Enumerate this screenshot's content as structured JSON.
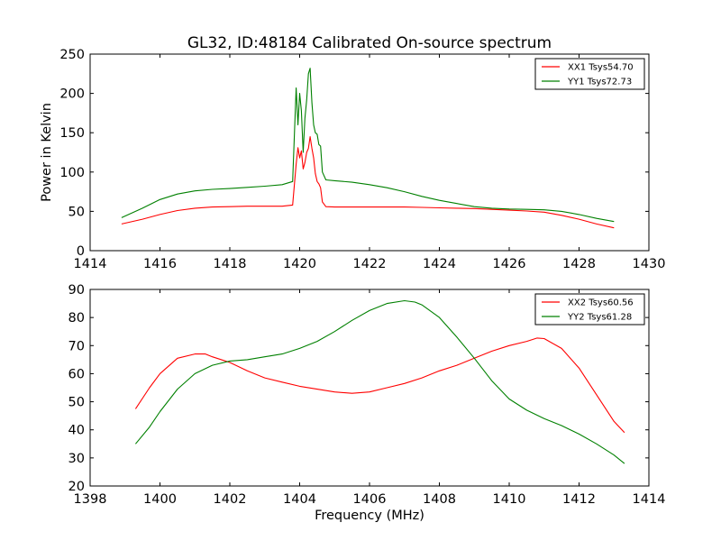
{
  "title": "GL32, ID:48184 Calibrated On-source spectrum",
  "colors": {
    "xx": "#ff0000",
    "yy": "#008000"
  },
  "chart_data": [
    {
      "type": "line",
      "title": "GL32, ID:48184 Calibrated On-source spectrum",
      "xlabel": "",
      "ylabel": "Power in Kelvin",
      "xlim": [
        1414,
        1430
      ],
      "ylim": [
        0,
        250
      ],
      "xticks": [
        1414,
        1416,
        1418,
        1420,
        1422,
        1424,
        1426,
        1428,
        1430
      ],
      "yticks": [
        0,
        50,
        100,
        150,
        200,
        250
      ],
      "grid": false,
      "legend": "top-right",
      "series": [
        {
          "name": "XX1 Tsys54.70",
          "color": "#ff0000",
          "x": [
            1414.9,
            1415.5,
            1416.0,
            1416.5,
            1417.0,
            1417.5,
            1418.0,
            1418.5,
            1419.0,
            1419.5,
            1419.8,
            1419.9,
            1419.95,
            1420.0,
            1420.05,
            1420.1,
            1420.15,
            1420.2,
            1420.25,
            1420.3,
            1420.35,
            1420.4,
            1420.45,
            1420.5,
            1420.55,
            1420.6,
            1420.65,
            1420.75,
            1421.0,
            1421.5,
            1422.0,
            1422.5,
            1423.0,
            1423.5,
            1424.0,
            1424.5,
            1425.0,
            1425.5,
            1426.0,
            1426.5,
            1427.0,
            1427.5,
            1428.0,
            1428.5,
            1429.0
          ],
          "y": [
            34,
            40,
            46,
            51,
            54,
            55.5,
            56,
            56.5,
            56.5,
            56.5,
            58,
            110,
            131,
            118,
            127,
            104,
            112,
            125,
            130,
            145,
            130,
            118,
            98,
            88,
            85,
            80,
            62,
            56,
            55.5,
            55.5,
            55.5,
            55.5,
            55.5,
            55,
            54.5,
            54,
            53.5,
            52.5,
            51.5,
            50.5,
            49,
            45,
            40,
            34,
            29
          ]
        },
        {
          "name": "YY1 Tsys72.73",
          "color": "#008000",
          "x": [
            1414.9,
            1415.5,
            1416.0,
            1416.5,
            1417.0,
            1417.5,
            1418.0,
            1418.5,
            1419.0,
            1419.5,
            1419.8,
            1419.9,
            1419.95,
            1420.0,
            1420.05,
            1420.1,
            1420.15,
            1420.2,
            1420.25,
            1420.3,
            1420.35,
            1420.4,
            1420.45,
            1420.5,
            1420.55,
            1420.6,
            1420.65,
            1420.75,
            1421.0,
            1421.5,
            1422.0,
            1422.5,
            1423.0,
            1423.5,
            1424.0,
            1424.5,
            1425.0,
            1425.5,
            1426.0,
            1426.5,
            1427.0,
            1427.5,
            1428.0,
            1428.5,
            1429.0
          ],
          "y": [
            42,
            54,
            65,
            72,
            76,
            78,
            79,
            80.5,
            82,
            84,
            88,
            207,
            160,
            200,
            178,
            125,
            168,
            192,
            225,
            232,
            188,
            160,
            150,
            148,
            135,
            133,
            100,
            90,
            89,
            87,
            84,
            80,
            75,
            69,
            64,
            60,
            56,
            54,
            53,
            52.5,
            52,
            50,
            46,
            41,
            37
          ]
        }
      ]
    },
    {
      "type": "line",
      "title": "",
      "xlabel": "Frequency (MHz)",
      "ylabel": "",
      "xlim": [
        1398,
        1414
      ],
      "ylim": [
        20,
        90
      ],
      "xticks": [
        1398,
        1400,
        1402,
        1404,
        1406,
        1408,
        1410,
        1412,
        1414
      ],
      "yticks": [
        20,
        30,
        40,
        50,
        60,
        70,
        80,
        90
      ],
      "grid": false,
      "legend": "top-right",
      "series": [
        {
          "name": "XX2 Tsys60.56",
          "color": "#ff0000",
          "x": [
            1399.3,
            1399.7,
            1400.0,
            1400.5,
            1401.0,
            1401.3,
            1401.5,
            1402.0,
            1402.5,
            1403.0,
            1403.5,
            1404.0,
            1404.5,
            1405.0,
            1405.5,
            1406.0,
            1406.5,
            1407.0,
            1407.5,
            1408.0,
            1408.5,
            1409.0,
            1409.5,
            1410.0,
            1410.5,
            1410.8,
            1411.0,
            1411.5,
            1412.0,
            1412.5,
            1413.0,
            1413.3
          ],
          "y": [
            47.5,
            55,
            60,
            65.5,
            67,
            67,
            66,
            64,
            61,
            58.5,
            57,
            55.5,
            54.5,
            53.5,
            53,
            53.5,
            55,
            56.5,
            58.5,
            61,
            63,
            65.5,
            68,
            70,
            71.5,
            72.7,
            72.5,
            69,
            62,
            52.5,
            43,
            39
          ]
        },
        {
          "name": "YY2 Tsys61.28",
          "color": "#008000",
          "x": [
            1399.3,
            1399.7,
            1400.0,
            1400.5,
            1401.0,
            1401.5,
            1402.0,
            1402.5,
            1403.0,
            1403.5,
            1404.0,
            1404.5,
            1405.0,
            1405.5,
            1406.0,
            1406.5,
            1407.0,
            1407.3,
            1407.5,
            1408.0,
            1408.5,
            1409.0,
            1409.5,
            1410.0,
            1410.5,
            1411.0,
            1411.5,
            1412.0,
            1412.5,
            1413.0,
            1413.3
          ],
          "y": [
            35,
            41,
            46.5,
            54.5,
            60,
            63,
            64.5,
            65,
            66,
            67,
            69,
            71.5,
            75,
            79,
            82.5,
            85,
            86,
            85.5,
            84.5,
            80,
            73,
            65.5,
            57.5,
            51,
            47,
            44,
            41.5,
            38.5,
            35,
            31,
            28
          ]
        }
      ]
    }
  ]
}
